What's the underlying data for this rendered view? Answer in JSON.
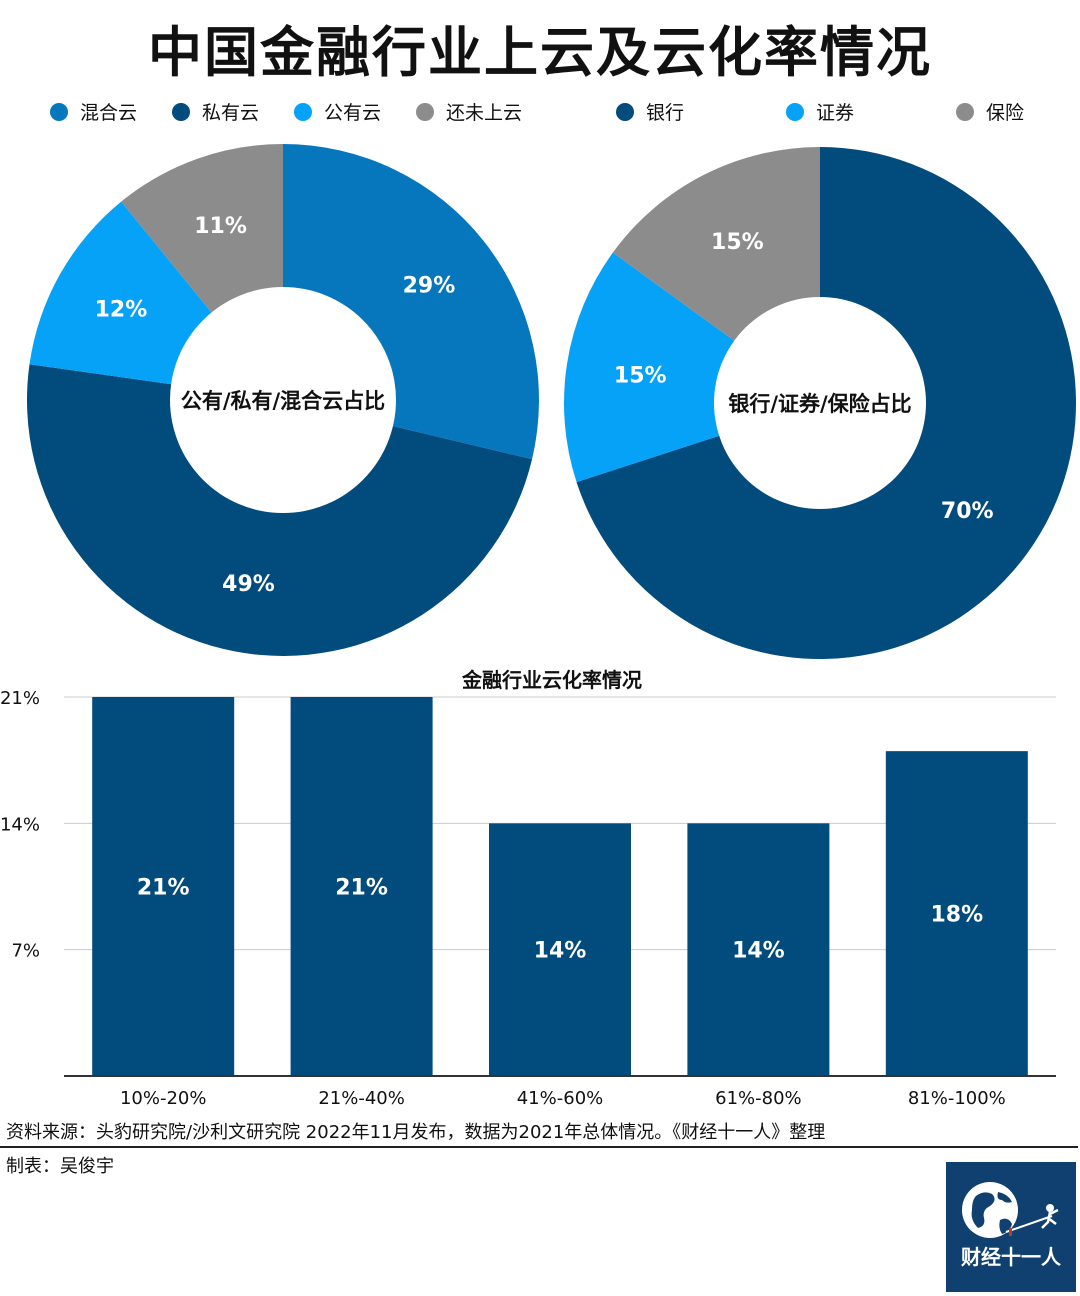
{
  "title": "中国金融行业上云及云化率情况",
  "colors": {
    "hybrid": "#0677bc",
    "private": "#024b7d",
    "public": "#06a2f7",
    "none": "#8c8c8c",
    "bank": "#024b7d",
    "securities": "#06a2f7",
    "insurance": "#8c8c8c",
    "bar": "#024b7d"
  },
  "legend_left": [
    "混合云",
    "私有云",
    "公有云",
    "还未上云"
  ],
  "legend_right": [
    "银行",
    "证券",
    "保险"
  ],
  "chart_data": [
    {
      "type": "pie",
      "center_label": "公有/私有/混合云占比",
      "slices": [
        {
          "label": "混合云",
          "value": 29,
          "text": "29%"
        },
        {
          "label": "私有云",
          "value": 49,
          "text": "49%"
        },
        {
          "label": "公有云",
          "value": 12,
          "text": "12%"
        },
        {
          "label": "还未上云",
          "value": 11,
          "text": "11%"
        }
      ]
    },
    {
      "type": "pie",
      "center_label": "银行/证券/保险占比",
      "slices": [
        {
          "label": "银行",
          "value": 70,
          "text": "70%"
        },
        {
          "label": "证券",
          "value": 15,
          "text": "15%"
        },
        {
          "label": "保险",
          "value": 15,
          "text": "15%"
        }
      ]
    },
    {
      "type": "bar",
      "title": "金融行业云化率情况",
      "categories": [
        "10%-20%",
        "21%-40%",
        "41%-60%",
        "61%-80%",
        "81%-100%"
      ],
      "values": [
        21,
        21,
        14,
        14,
        18
      ],
      "value_labels": [
        "21%",
        "21%",
        "14%",
        "14%",
        "18%"
      ],
      "yticks": [
        "21%",
        "14%",
        "7%"
      ],
      "ytick_values": [
        21,
        14,
        7
      ],
      "ylim": [
        0,
        21
      ],
      "grid": true
    }
  ],
  "source": "资料来源：头豹研究院/沙利文研究院 2022年11月发布，数据为2021年总体情况。《财经十一人》整理",
  "maker": "制表：吴俊宇",
  "logo_text": "财经十一人"
}
